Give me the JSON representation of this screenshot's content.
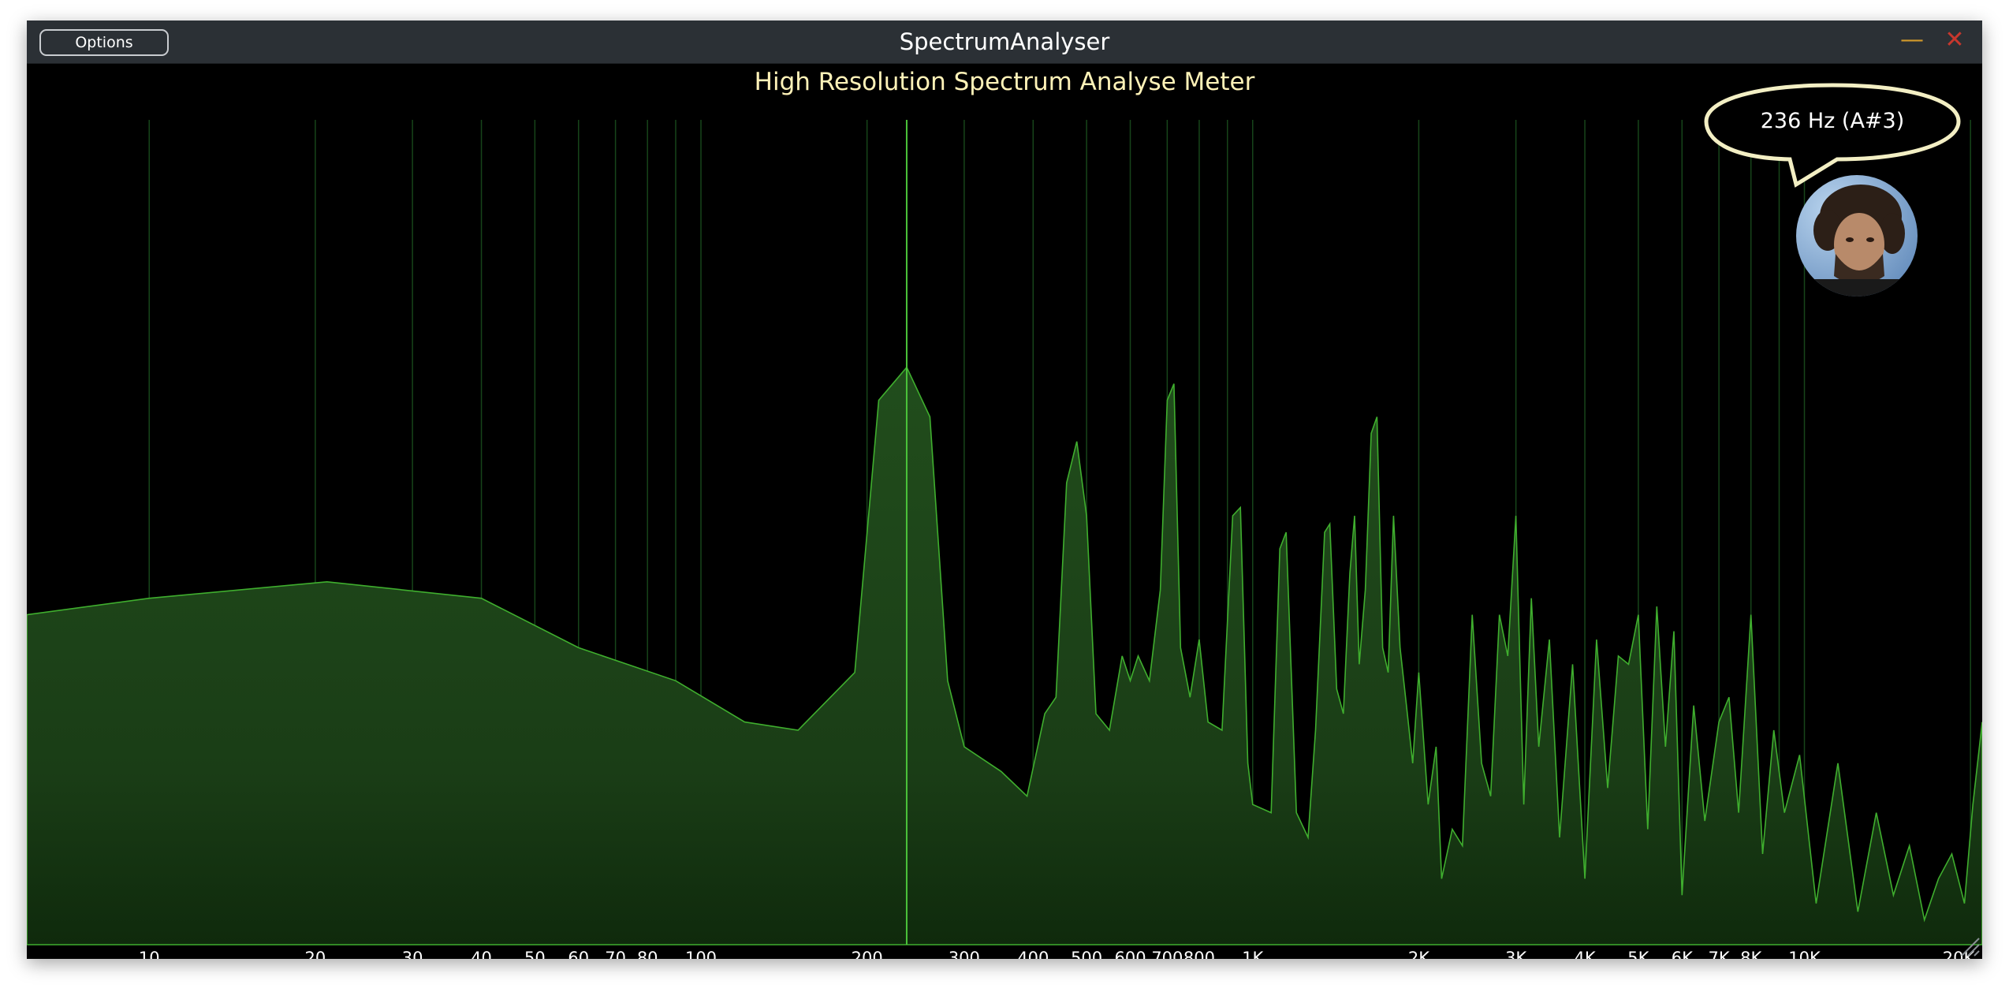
{
  "window": {
    "title": "SpectrumAnalyser",
    "options_label": "Options",
    "minimize_glyph": "—",
    "close_glyph": "✕",
    "minimize_color": "#d39a2b",
    "close_color": "#c8372d"
  },
  "analyser": {
    "title": "High Resolution Spectrum Analyse Meter",
    "peak_readout": "236 Hz (A#3)",
    "marker_frequency_hz": 236,
    "avatar_icon": "user-avatar-photo",
    "fill_color": "#1f4a1a",
    "line_color": "#3fae2e",
    "grid_color": "#17451a",
    "marker_color": "#4bc43a"
  },
  "chart_data": {
    "type": "area",
    "x_scale": "log",
    "xlim": [
      6,
      21000
    ],
    "ylim": [
      0,
      1
    ],
    "grid": true,
    "tick_labels": [
      {
        "value": 10,
        "label": "10"
      },
      {
        "value": 20,
        "label": "20"
      },
      {
        "value": 30,
        "label": "30"
      },
      {
        "value": 40,
        "label": "40"
      },
      {
        "value": 50,
        "label": "50"
      },
      {
        "value": 60,
        "label": "60"
      },
      {
        "value": 70,
        "label": "70"
      },
      {
        "value": 80,
        "label": "80"
      },
      {
        "value": 100,
        "label": "100"
      },
      {
        "value": 200,
        "label": "200"
      },
      {
        "value": 300,
        "label": "300"
      },
      {
        "value": 400,
        "label": "400"
      },
      {
        "value": 500,
        "label": "500"
      },
      {
        "value": 600,
        "label": "600"
      },
      {
        "value": 700,
        "label": "700"
      },
      {
        "value": 800,
        "label": "800"
      },
      {
        "value": 1000,
        "label": "1K"
      },
      {
        "value": 2000,
        "label": "2K"
      },
      {
        "value": 3000,
        "label": "3K"
      },
      {
        "value": 4000,
        "label": "4K"
      },
      {
        "value": 5000,
        "label": "5K"
      },
      {
        "value": 6000,
        "label": "6K"
      },
      {
        "value": 7000,
        "label": "7K"
      },
      {
        "value": 8000,
        "label": "8K"
      },
      {
        "value": 10000,
        "label": "10K"
      },
      {
        "value": 20000,
        "label": "20K"
      }
    ],
    "grid_lines": [
      10,
      20,
      30,
      40,
      50,
      60,
      70,
      80,
      90,
      100,
      200,
      300,
      400,
      500,
      600,
      700,
      800,
      900,
      1000,
      2000,
      3000,
      4000,
      5000,
      6000,
      7000,
      8000,
      9000,
      10000,
      20000
    ],
    "series": [
      {
        "x": [
          6,
          10,
          21,
          40,
          60,
          90,
          120,
          150,
          190,
          210,
          236,
          260,
          280,
          300,
          350,
          390,
          420,
          440,
          460,
          480,
          500,
          520,
          550,
          580,
          600,
          620,
          650,
          680,
          700,
          720,
          740,
          770,
          800,
          830,
          880,
          920,
          950,
          980,
          1000,
          1080,
          1120,
          1150,
          1200,
          1260,
          1300,
          1350,
          1380,
          1420,
          1460,
          1500,
          1530,
          1560,
          1600,
          1640,
          1680,
          1720,
          1760,
          1800,
          1850,
          1900,
          1950,
          2000,
          2080,
          2150,
          2200,
          2300,
          2400,
          2500,
          2600,
          2700,
          2800,
          2900,
          3000,
          3100,
          3200,
          3300,
          3450,
          3600,
          3800,
          4000,
          4200,
          4400,
          4600,
          4800,
          5000,
          5200,
          5400,
          5600,
          5800,
          6000,
          6300,
          6600,
          7000,
          7300,
          7600,
          8000,
          8400,
          8800,
          9200,
          9800,
          10500,
          11500,
          12500,
          13500,
          14500,
          15500,
          16500,
          17500,
          18500,
          19500,
          20200,
          21000
        ],
        "y": [
          0.4,
          0.42,
          0.44,
          0.42,
          0.36,
          0.32,
          0.27,
          0.26,
          0.33,
          0.66,
          0.7,
          0.64,
          0.32,
          0.24,
          0.21,
          0.18,
          0.28,
          0.3,
          0.56,
          0.61,
          0.52,
          0.28,
          0.26,
          0.35,
          0.32,
          0.35,
          0.32,
          0.43,
          0.66,
          0.68,
          0.36,
          0.3,
          0.37,
          0.27,
          0.26,
          0.52,
          0.53,
          0.22,
          0.17,
          0.16,
          0.48,
          0.5,
          0.16,
          0.13,
          0.26,
          0.5,
          0.51,
          0.31,
          0.28,
          0.45,
          0.52,
          0.34,
          0.43,
          0.62,
          0.64,
          0.36,
          0.33,
          0.52,
          0.36,
          0.29,
          0.22,
          0.33,
          0.17,
          0.24,
          0.08,
          0.14,
          0.12,
          0.4,
          0.22,
          0.18,
          0.4,
          0.35,
          0.52,
          0.17,
          0.42,
          0.24,
          0.37,
          0.13,
          0.34,
          0.08,
          0.37,
          0.19,
          0.35,
          0.34,
          0.4,
          0.14,
          0.41,
          0.24,
          0.38,
          0.06,
          0.29,
          0.15,
          0.27,
          0.3,
          0.16,
          0.4,
          0.11,
          0.26,
          0.16,
          0.23,
          0.05,
          0.22,
          0.04,
          0.16,
          0.06,
          0.12,
          0.03,
          0.08,
          0.11,
          0.05,
          0.17,
          0.27
        ]
      }
    ]
  }
}
